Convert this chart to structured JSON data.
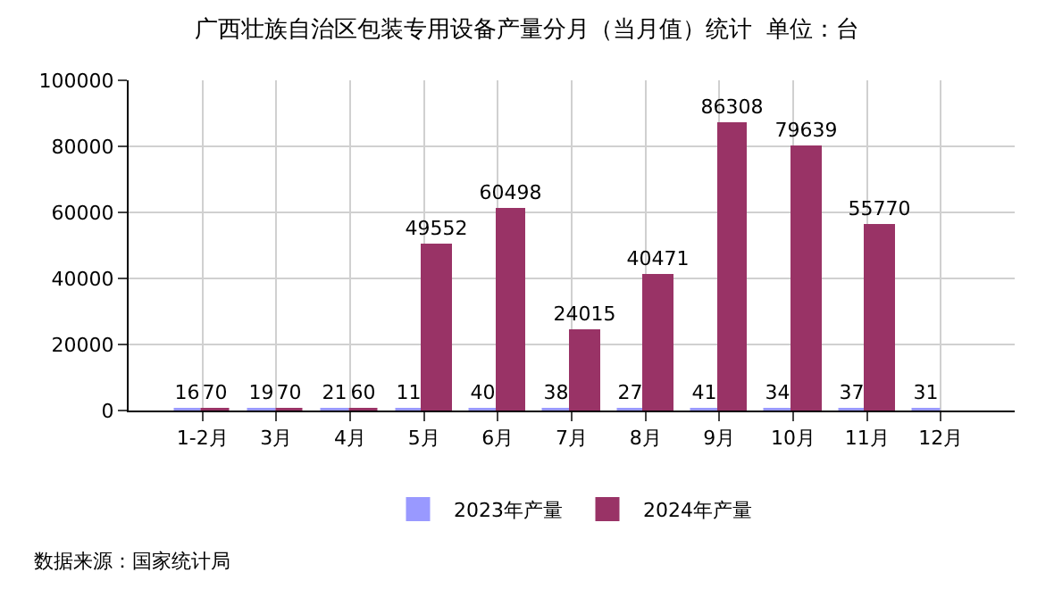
{
  "chart_data": {
    "type": "bar",
    "title": "广西壮族自治区包装专用设备产量分月（当月值）统计  单位：台",
    "categories": [
      "1-2月",
      "3月",
      "4月",
      "5月",
      "6月",
      "7月",
      "8月",
      "9月",
      "10月",
      "11月",
      "12月"
    ],
    "series": [
      {
        "name": "2023年产量",
        "color": "#9999ff",
        "values": [
          16,
          19,
          21,
          11,
          40,
          38,
          27,
          41,
          34,
          37,
          31
        ]
      },
      {
        "name": "2024年产量",
        "color": "#993366",
        "values": [
          70,
          70,
          60,
          49552,
          60498,
          24015,
          40471,
          86308,
          79639,
          55770,
          null
        ]
      }
    ],
    "ylim": [
      0,
      100000
    ],
    "yticks": [
      0,
      20000,
      40000,
      60000,
      80000,
      100000
    ],
    "grid": true,
    "legend": "bottom",
    "data_labels": true,
    "annotations": [
      "数据来源：国家统计局"
    ]
  }
}
